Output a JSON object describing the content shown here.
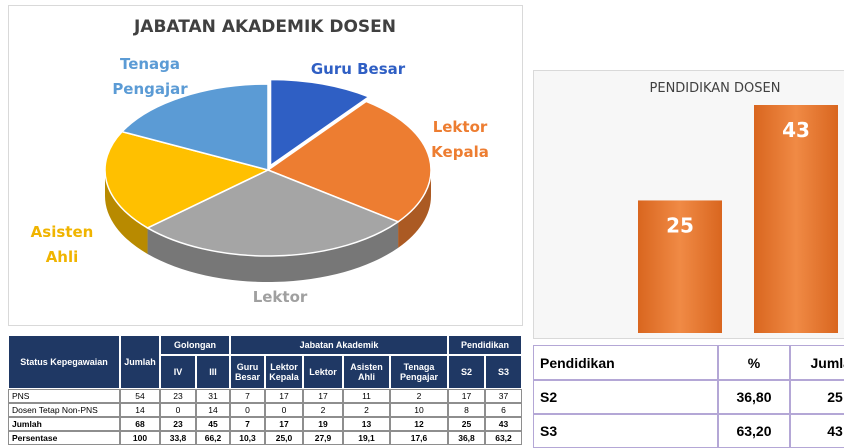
{
  "chart_data": [
    {
      "type": "pie",
      "title": "JABATAN AKADEMIK DOSEN",
      "categories": [
        "Guru Besar",
        "Lektor Kepala",
        "Lektor",
        "Asisten Ahli",
        "Tenaga Pengajar"
      ],
      "values": [
        7,
        17,
        19,
        13,
        12
      ],
      "colors": [
        "#2f5fc4",
        "#ed7d31",
        "#a5a5a5",
        "#ffc000",
        "#5b9bd5"
      ]
    },
    {
      "type": "bar",
      "title": "PENDIDIKAN DOSEN",
      "categories": [
        null,
        null
      ],
      "values": [
        25,
        43
      ],
      "color": "#ed7d31"
    }
  ],
  "left_table": {
    "status": "Status Kepegawaian",
    "jumlah": "Jumlah",
    "groups": [
      "Golongan",
      "Jabatan Akademik",
      "Pendidikan"
    ],
    "columns": [
      "IV",
      "III",
      "Guru Besar",
      "Lektor Kepala",
      "Lektor",
      "Asisten Ahli",
      "Tenaga Pengajar",
      "S2",
      "S3"
    ],
    "rows": [
      [
        "PNS",
        "54",
        "23",
        "31",
        "7",
        "17",
        "17",
        "11",
        "2",
        "17",
        "37"
      ],
      [
        "Dosen Tetap Non-PNS",
        "14",
        "0",
        "14",
        "0",
        "0",
        "2",
        "2",
        "10",
        "8",
        "6"
      ],
      [
        "Jumlah",
        "68",
        "23",
        "45",
        "7",
        "17",
        "19",
        "13",
        "12",
        "25",
        "43"
      ],
      [
        "Persentase",
        "100",
        "33,8",
        "66,2",
        "10,3",
        "25,0",
        "27,9",
        "19,1",
        "17,6",
        "36,8",
        "63,2"
      ]
    ]
  },
  "right_table": {
    "header": [
      "Pendidikan",
      "%",
      "Jumlah"
    ],
    "rows": [
      [
        "S2",
        "36,80",
        "25"
      ],
      [
        "S3",
        "63,20",
        "43"
      ]
    ]
  }
}
